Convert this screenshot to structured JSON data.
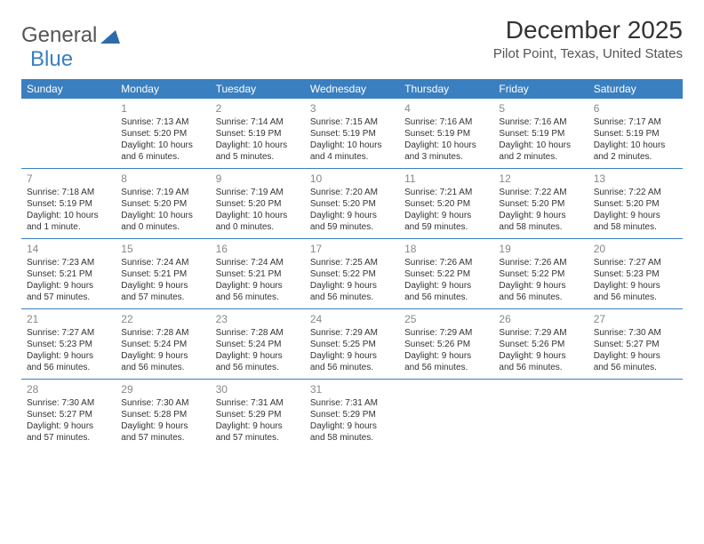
{
  "logo": {
    "text1": "General",
    "text2": "Blue"
  },
  "title": "December 2025",
  "location": "Pilot Point, Texas, United States",
  "colors": {
    "header_bg": "#3a7fbf",
    "header_text": "#ffffff",
    "border": "#3a7fbf",
    "daynum": "#888888",
    "body_text": "#333333"
  },
  "day_headers": [
    "Sunday",
    "Monday",
    "Tuesday",
    "Wednesday",
    "Thursday",
    "Friday",
    "Saturday"
  ],
  "weeks": [
    [
      {
        "n": "",
        "sr": "",
        "ss": "",
        "dl": ""
      },
      {
        "n": "1",
        "sr": "Sunrise: 7:13 AM",
        "ss": "Sunset: 5:20 PM",
        "dl": "Daylight: 10 hours and 6 minutes."
      },
      {
        "n": "2",
        "sr": "Sunrise: 7:14 AM",
        "ss": "Sunset: 5:19 PM",
        "dl": "Daylight: 10 hours and 5 minutes."
      },
      {
        "n": "3",
        "sr": "Sunrise: 7:15 AM",
        "ss": "Sunset: 5:19 PM",
        "dl": "Daylight: 10 hours and 4 minutes."
      },
      {
        "n": "4",
        "sr": "Sunrise: 7:16 AM",
        "ss": "Sunset: 5:19 PM",
        "dl": "Daylight: 10 hours and 3 minutes."
      },
      {
        "n": "5",
        "sr": "Sunrise: 7:16 AM",
        "ss": "Sunset: 5:19 PM",
        "dl": "Daylight: 10 hours and 2 minutes."
      },
      {
        "n": "6",
        "sr": "Sunrise: 7:17 AM",
        "ss": "Sunset: 5:19 PM",
        "dl": "Daylight: 10 hours and 2 minutes."
      }
    ],
    [
      {
        "n": "7",
        "sr": "Sunrise: 7:18 AM",
        "ss": "Sunset: 5:19 PM",
        "dl": "Daylight: 10 hours and 1 minute."
      },
      {
        "n": "8",
        "sr": "Sunrise: 7:19 AM",
        "ss": "Sunset: 5:20 PM",
        "dl": "Daylight: 10 hours and 0 minutes."
      },
      {
        "n": "9",
        "sr": "Sunrise: 7:19 AM",
        "ss": "Sunset: 5:20 PM",
        "dl": "Daylight: 10 hours and 0 minutes."
      },
      {
        "n": "10",
        "sr": "Sunrise: 7:20 AM",
        "ss": "Sunset: 5:20 PM",
        "dl": "Daylight: 9 hours and 59 minutes."
      },
      {
        "n": "11",
        "sr": "Sunrise: 7:21 AM",
        "ss": "Sunset: 5:20 PM",
        "dl": "Daylight: 9 hours and 59 minutes."
      },
      {
        "n": "12",
        "sr": "Sunrise: 7:22 AM",
        "ss": "Sunset: 5:20 PM",
        "dl": "Daylight: 9 hours and 58 minutes."
      },
      {
        "n": "13",
        "sr": "Sunrise: 7:22 AM",
        "ss": "Sunset: 5:20 PM",
        "dl": "Daylight: 9 hours and 58 minutes."
      }
    ],
    [
      {
        "n": "14",
        "sr": "Sunrise: 7:23 AM",
        "ss": "Sunset: 5:21 PM",
        "dl": "Daylight: 9 hours and 57 minutes."
      },
      {
        "n": "15",
        "sr": "Sunrise: 7:24 AM",
        "ss": "Sunset: 5:21 PM",
        "dl": "Daylight: 9 hours and 57 minutes."
      },
      {
        "n": "16",
        "sr": "Sunrise: 7:24 AM",
        "ss": "Sunset: 5:21 PM",
        "dl": "Daylight: 9 hours and 56 minutes."
      },
      {
        "n": "17",
        "sr": "Sunrise: 7:25 AM",
        "ss": "Sunset: 5:22 PM",
        "dl": "Daylight: 9 hours and 56 minutes."
      },
      {
        "n": "18",
        "sr": "Sunrise: 7:26 AM",
        "ss": "Sunset: 5:22 PM",
        "dl": "Daylight: 9 hours and 56 minutes."
      },
      {
        "n": "19",
        "sr": "Sunrise: 7:26 AM",
        "ss": "Sunset: 5:22 PM",
        "dl": "Daylight: 9 hours and 56 minutes."
      },
      {
        "n": "20",
        "sr": "Sunrise: 7:27 AM",
        "ss": "Sunset: 5:23 PM",
        "dl": "Daylight: 9 hours and 56 minutes."
      }
    ],
    [
      {
        "n": "21",
        "sr": "Sunrise: 7:27 AM",
        "ss": "Sunset: 5:23 PM",
        "dl": "Daylight: 9 hours and 56 minutes."
      },
      {
        "n": "22",
        "sr": "Sunrise: 7:28 AM",
        "ss": "Sunset: 5:24 PM",
        "dl": "Daylight: 9 hours and 56 minutes."
      },
      {
        "n": "23",
        "sr": "Sunrise: 7:28 AM",
        "ss": "Sunset: 5:24 PM",
        "dl": "Daylight: 9 hours and 56 minutes."
      },
      {
        "n": "24",
        "sr": "Sunrise: 7:29 AM",
        "ss": "Sunset: 5:25 PM",
        "dl": "Daylight: 9 hours and 56 minutes."
      },
      {
        "n": "25",
        "sr": "Sunrise: 7:29 AM",
        "ss": "Sunset: 5:26 PM",
        "dl": "Daylight: 9 hours and 56 minutes."
      },
      {
        "n": "26",
        "sr": "Sunrise: 7:29 AM",
        "ss": "Sunset: 5:26 PM",
        "dl": "Daylight: 9 hours and 56 minutes."
      },
      {
        "n": "27",
        "sr": "Sunrise: 7:30 AM",
        "ss": "Sunset: 5:27 PM",
        "dl": "Daylight: 9 hours and 56 minutes."
      }
    ],
    [
      {
        "n": "28",
        "sr": "Sunrise: 7:30 AM",
        "ss": "Sunset: 5:27 PM",
        "dl": "Daylight: 9 hours and 57 minutes."
      },
      {
        "n": "29",
        "sr": "Sunrise: 7:30 AM",
        "ss": "Sunset: 5:28 PM",
        "dl": "Daylight: 9 hours and 57 minutes."
      },
      {
        "n": "30",
        "sr": "Sunrise: 7:31 AM",
        "ss": "Sunset: 5:29 PM",
        "dl": "Daylight: 9 hours and 57 minutes."
      },
      {
        "n": "31",
        "sr": "Sunrise: 7:31 AM",
        "ss": "Sunset: 5:29 PM",
        "dl": "Daylight: 9 hours and 58 minutes."
      },
      {
        "n": "",
        "sr": "",
        "ss": "",
        "dl": ""
      },
      {
        "n": "",
        "sr": "",
        "ss": "",
        "dl": ""
      },
      {
        "n": "",
        "sr": "",
        "ss": "",
        "dl": ""
      }
    ]
  ]
}
